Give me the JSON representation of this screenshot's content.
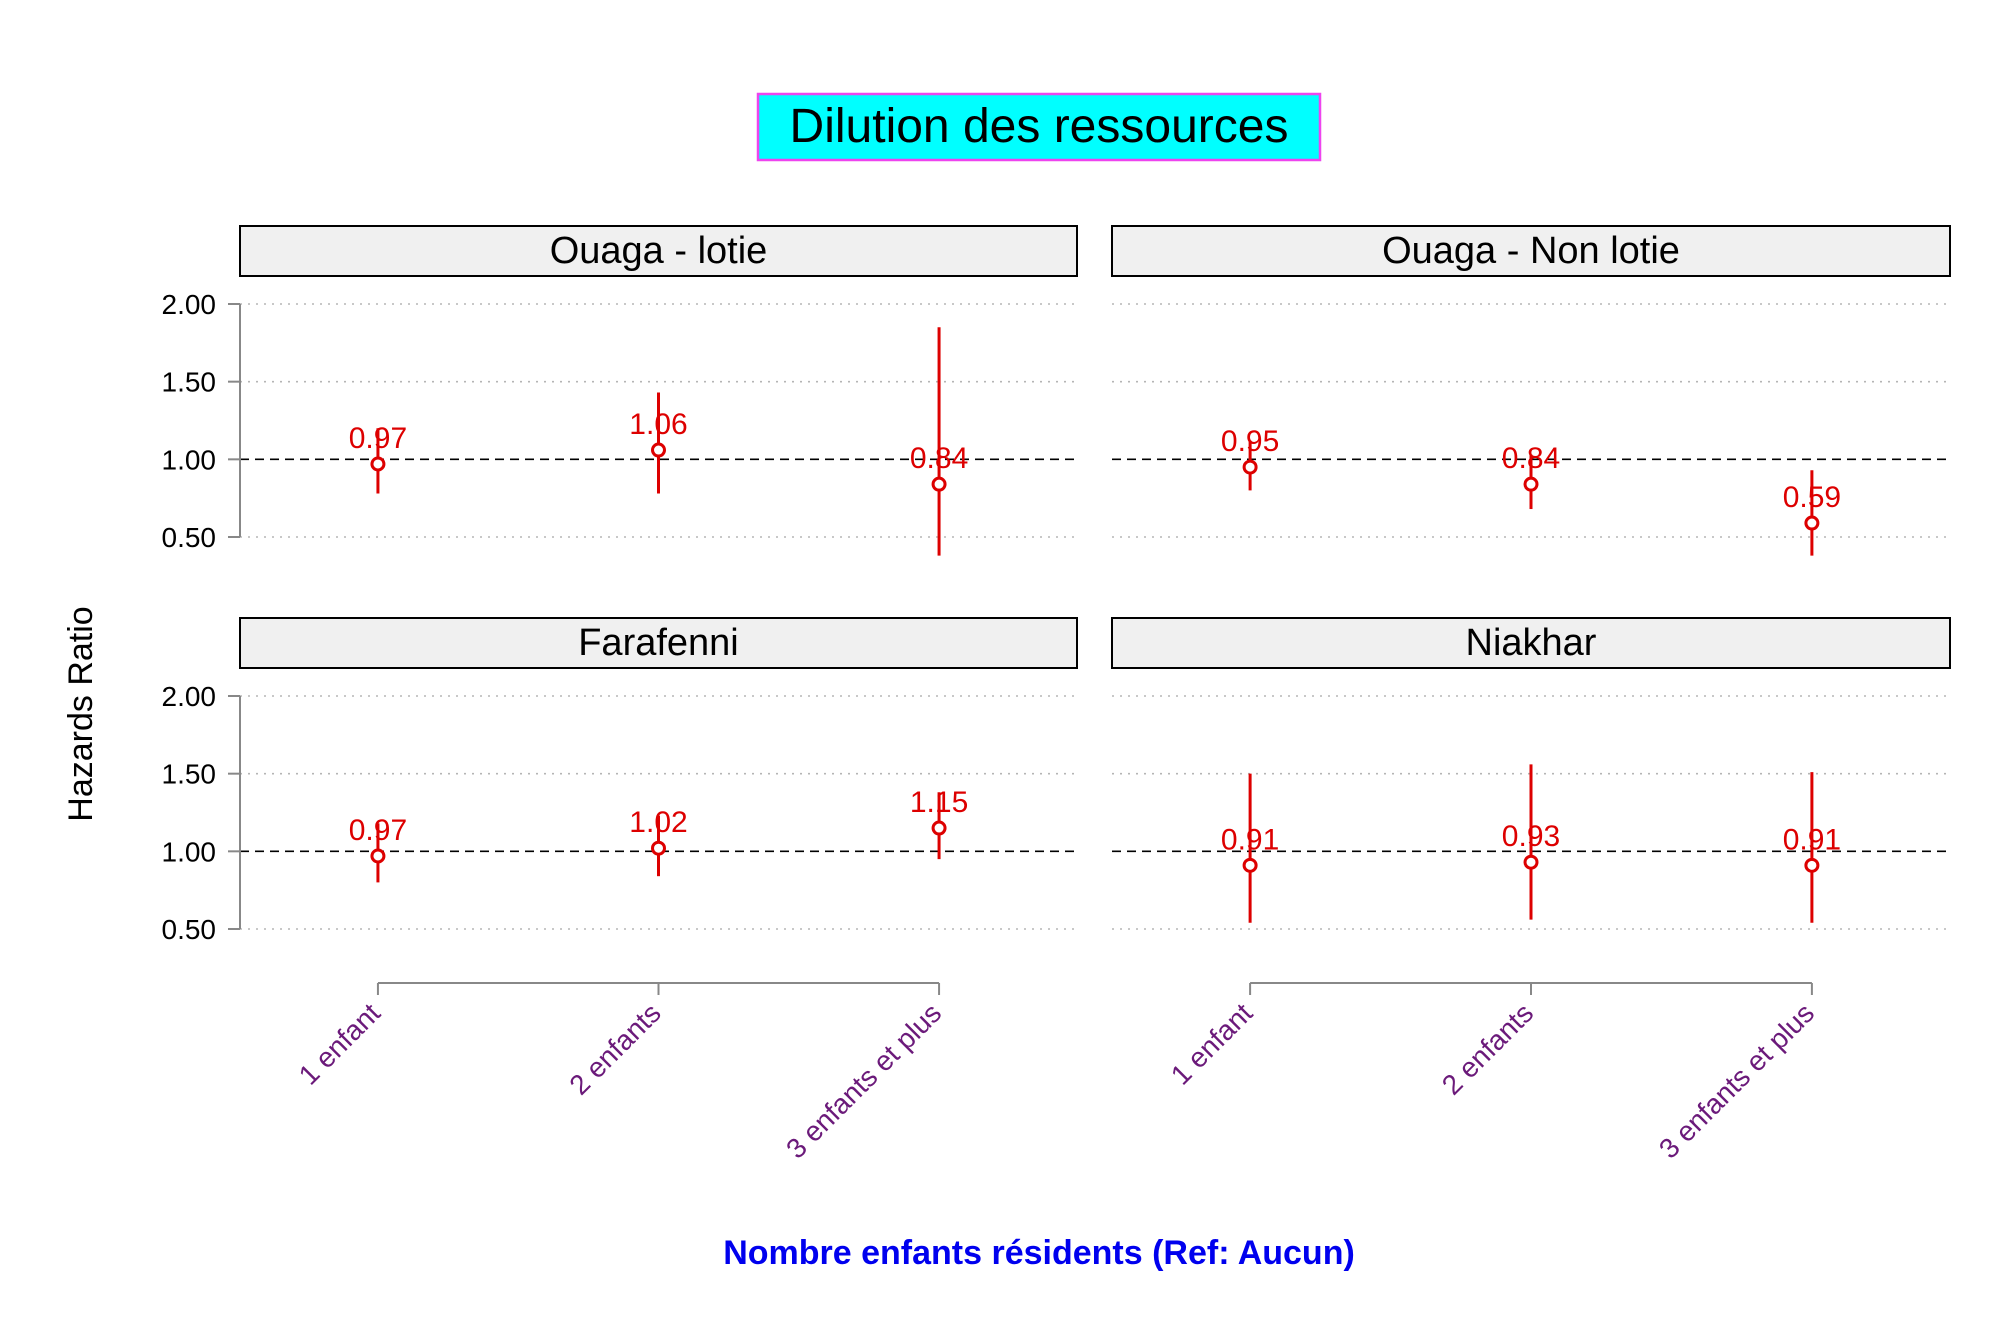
{
  "chart_data": {
    "type": "scatter",
    "title": "Dilution des ressources",
    "xlabel": "Nombre enfants résidents (Ref: Aucun)",
    "ylabel": "Hazards Ratio",
    "categories": [
      "1 enfant",
      "2 enfants",
      "3 enfants et plus"
    ],
    "y_ticks": [
      "0.50",
      "1.00",
      "1.50",
      "2.00"
    ],
    "ylim": [
      0.35,
      2.02
    ],
    "reference_line": 1.0,
    "grid": "horizontal dotted",
    "colors": {
      "points": "#dd0000",
      "title_fill": "#00ffff",
      "title_border": "#ee44ee",
      "xlabel": "#0000ee",
      "x_tick_labels": "#6b1a7a",
      "strip_fill": "#f0f0f0"
    },
    "panels": [
      {
        "name": "Ouaga - lotie",
        "estimates": [
          0.97,
          1.06,
          0.84
        ],
        "labels": [
          "0.97",
          "1.06",
          "0.84"
        ],
        "ci_low": [
          0.78,
          0.78,
          0.38
        ],
        "ci_high": [
          1.2,
          1.43,
          1.85
        ]
      },
      {
        "name": "Ouaga - Non lotie",
        "estimates": [
          0.95,
          0.84,
          0.59
        ],
        "labels": [
          "0.95",
          "0.84",
          "0.59"
        ],
        "ci_low": [
          0.8,
          0.68,
          0.38
        ],
        "ci_high": [
          1.12,
          1.03,
          0.93
        ]
      },
      {
        "name": "Farafenni",
        "estimates": [
          0.97,
          1.02,
          1.15
        ],
        "labels": [
          "0.97",
          "1.02",
          "1.15"
        ],
        "ci_low": [
          0.8,
          0.84,
          0.95
        ],
        "ci_high": [
          1.18,
          1.23,
          1.38
        ]
      },
      {
        "name": "Niakhar",
        "estimates": [
          0.91,
          0.93,
          0.91
        ],
        "labels": [
          "0.91",
          "0.93",
          "0.91"
        ],
        "ci_low": [
          0.54,
          0.56,
          0.54
        ],
        "ci_high": [
          1.5,
          1.56,
          1.51
        ]
      }
    ]
  }
}
